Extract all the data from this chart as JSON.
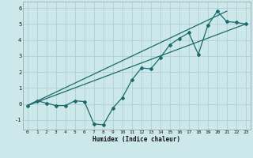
{
  "xlabel": "Humidex (Indice chaleur)",
  "background_color": "#cce8ea",
  "grid_color": "#b0d0d2",
  "line_color": "#1a6b6b",
  "xlim": [
    -0.5,
    23.5
  ],
  "ylim": [
    -1.6,
    6.4
  ],
  "xticks": [
    0,
    1,
    2,
    3,
    4,
    5,
    6,
    7,
    8,
    9,
    10,
    11,
    12,
    13,
    14,
    15,
    16,
    17,
    18,
    19,
    20,
    21,
    22,
    23
  ],
  "yticks": [
    -1,
    0,
    1,
    2,
    3,
    4,
    5,
    6
  ],
  "series1_x": [
    0,
    1,
    2,
    3,
    4,
    5,
    6,
    7,
    8,
    9,
    10,
    11,
    12,
    13,
    14,
    15,
    16,
    17,
    18,
    19,
    20,
    21,
    22,
    23
  ],
  "series1_y": [
    -0.1,
    0.2,
    0.05,
    -0.1,
    -0.1,
    0.2,
    0.15,
    -1.25,
    -1.3,
    -0.25,
    0.4,
    1.5,
    2.25,
    2.2,
    2.9,
    3.7,
    4.1,
    4.45,
    3.1,
    4.9,
    5.8,
    5.15,
    5.1,
    5.0
  ],
  "series2_x": [
    0,
    23
  ],
  "series2_y": [
    -0.1,
    5.0
  ],
  "series3_x": [
    0,
    21
  ],
  "series3_y": [
    -0.1,
    5.8
  ]
}
